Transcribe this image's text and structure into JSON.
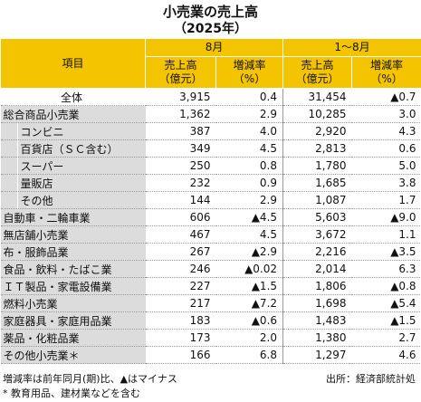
{
  "title": "小売業の売上高",
  "subtitle": "（2025年）",
  "table": {
    "header": {
      "item": "項目",
      "group_1": "8月",
      "group_2": "1～8月",
      "columns": [
        [
          "売上高",
          "（億元）"
        ],
        [
          "増減率",
          "（%）"
        ],
        [
          "売上高",
          "（億元）"
        ],
        [
          "増減率",
          "（%）"
        ]
      ]
    },
    "rows": [
      [
        "全体",
        "3,915",
        "0.4",
        "31,454",
        "▲0.7"
      ],
      [
        "総合商品小売業",
        "1,362",
        "2.9",
        "10,285",
        "3.0"
      ],
      [
        "コンビニ",
        "387",
        "4.0",
        "2,920",
        "4.3"
      ],
      [
        "百貨店（ＳＣ含む）",
        "349",
        "4.5",
        "2,813",
        "0.6"
      ],
      [
        "スーパー",
        "250",
        "0.8",
        "1,780",
        "5.0"
      ],
      [
        "量販店",
        "232",
        "0.9",
        "1,685",
        "3.8"
      ],
      [
        "その他",
        "144",
        "2.9",
        "1,087",
        "1.7"
      ],
      [
        "自動車・二輪車業",
        "606",
        "▲4.5",
        "5,603",
        "▲9.0"
      ],
      [
        "無店舗小売業",
        "467",
        "4.5",
        "3,672",
        "1.1"
      ],
      [
        "布・服飾品業",
        "267",
        "▲2.9",
        "2,216",
        "▲3.5"
      ],
      [
        "食品・飲料・たばこ業",
        "246",
        "▲0.02",
        "2,014",
        "6.3"
      ],
      [
        "ＩＴ製品・家電設備業",
        "227",
        "▲1.5",
        "1,806",
        "▲0.8"
      ],
      [
        "燃料小売業",
        "217",
        "▲7.2",
        "1,698",
        "▲5.4"
      ],
      [
        "家庭器具・家庭用品業",
        "183",
        "▲0.6",
        "1,483",
        "▲1.5"
      ],
      [
        "薬品・化粧品業",
        "173",
        "2.0",
        "1,380",
        "2.7"
      ],
      [
        "その他小売業＊",
        "166",
        "6.8",
        "1,297",
        "4.6"
      ]
    ]
  },
  "notes": [
    "増減率は前年同月(期)比、▲はマイナス",
    "* 教育用品、建材業などを含む"
  ],
  "source": "出所：経済部統計処"
}
